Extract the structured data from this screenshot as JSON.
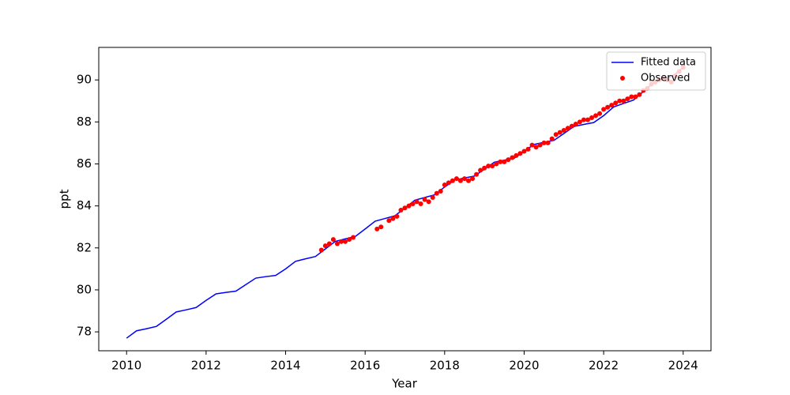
{
  "chart_data": {
    "type": "line",
    "xlabel": "Year",
    "ylabel": "ppt",
    "xlim": [
      2009.3,
      2024.7
    ],
    "ylim": [
      77.1,
      91.55
    ],
    "xticks": [
      2010,
      2012,
      2014,
      2016,
      2018,
      2020,
      2022,
      2024
    ],
    "yticks": [
      78,
      80,
      82,
      84,
      86,
      88,
      90
    ],
    "legend": "upper right",
    "series": [
      {
        "name": "Fitted data",
        "type": "line",
        "color": "#0000ff",
        "x": [
          2010.0,
          2010.25,
          2010.5,
          2010.75,
          2011.0,
          2011.25,
          2011.5,
          2011.75,
          2012.0,
          2012.25,
          2012.5,
          2012.75,
          2013.0,
          2013.25,
          2013.5,
          2013.75,
          2014.0,
          2014.25,
          2014.5,
          2014.75,
          2015.0,
          2015.25,
          2015.5,
          2015.75,
          2016.0,
          2016.25,
          2016.5,
          2016.75,
          2017.0,
          2017.25,
          2017.5,
          2017.75,
          2018.0,
          2018.25,
          2018.5,
          2018.75,
          2019.0,
          2019.25,
          2019.5,
          2019.75,
          2020.0,
          2020.25,
          2020.5,
          2020.75,
          2021.0,
          2021.25,
          2021.5,
          2021.75,
          2022.0,
          2022.25,
          2022.5,
          2022.75,
          2023.0,
          2023.25,
          2023.5,
          2023.75,
          2024.0
        ],
        "values": [
          77.7,
          78.05,
          78.15,
          78.26,
          78.6,
          78.95,
          79.05,
          79.16,
          79.5,
          79.81,
          79.88,
          79.94,
          80.25,
          80.56,
          80.63,
          80.69,
          81.0,
          81.36,
          81.48,
          81.59,
          81.95,
          82.31,
          82.43,
          82.54,
          82.9,
          83.27,
          83.4,
          83.53,
          83.9,
          84.27,
          84.4,
          84.53,
          84.9,
          85.23,
          85.33,
          85.42,
          85.75,
          86.08,
          86.18,
          86.27,
          86.6,
          86.93,
          87.03,
          87.12,
          87.45,
          87.78,
          87.88,
          87.97,
          88.3,
          88.71,
          88.88,
          89.04,
          89.45,
          89.86,
          90.03,
          90.19,
          90.6
        ]
      },
      {
        "name": "Observed",
        "type": "scatter",
        "color": "#ff0000",
        "x": [
          2014.9,
          2015.0,
          2015.1,
          2015.2,
          2015.3,
          2015.4,
          2015.5,
          2015.6,
          2015.7,
          2016.3,
          2016.4,
          2016.6,
          2016.7,
          2016.8,
          2016.9,
          2017.0,
          2017.1,
          2017.2,
          2017.3,
          2017.4,
          2017.5,
          2017.6,
          2017.7,
          2017.8,
          2017.9,
          2018.0,
          2018.1,
          2018.2,
          2018.3,
          2018.4,
          2018.5,
          2018.6,
          2018.7,
          2018.8,
          2018.9,
          2019.0,
          2019.1,
          2019.2,
          2019.3,
          2019.4,
          2019.5,
          2019.6,
          2019.7,
          2019.8,
          2019.9,
          2020.0,
          2020.1,
          2020.2,
          2020.3,
          2020.4,
          2020.5,
          2020.6,
          2020.7,
          2020.8,
          2020.9,
          2021.0,
          2021.1,
          2021.2,
          2021.3,
          2021.4,
          2021.5,
          2021.6,
          2021.7,
          2021.8,
          2021.9,
          2022.0,
          2022.1,
          2022.2,
          2022.3,
          2022.4,
          2022.5,
          2022.6,
          2022.7,
          2022.8,
          2022.9,
          2023.0,
          2023.1,
          2023.2,
          2023.3,
          2023.4,
          2023.5,
          2023.6,
          2023.7,
          2023.8,
          2023.9,
          2024.0
        ],
        "values": [
          81.9,
          82.1,
          82.2,
          82.4,
          82.2,
          82.3,
          82.3,
          82.4,
          82.5,
          82.9,
          83.0,
          83.3,
          83.4,
          83.5,
          83.8,
          83.9,
          84.0,
          84.1,
          84.2,
          84.1,
          84.3,
          84.2,
          84.4,
          84.6,
          84.7,
          85.0,
          85.1,
          85.2,
          85.3,
          85.2,
          85.3,
          85.2,
          85.3,
          85.5,
          85.7,
          85.8,
          85.9,
          85.9,
          86.0,
          86.1,
          86.1,
          86.2,
          86.3,
          86.4,
          86.5,
          86.6,
          86.7,
          86.9,
          86.8,
          86.9,
          87.0,
          87.0,
          87.2,
          87.4,
          87.5,
          87.6,
          87.7,
          87.8,
          87.9,
          88.0,
          88.1,
          88.1,
          88.2,
          88.3,
          88.4,
          88.6,
          88.7,
          88.8,
          88.9,
          89.0,
          89.0,
          89.1,
          89.2,
          89.2,
          89.3,
          89.5,
          89.6,
          89.8,
          89.9,
          90.0,
          90.1,
          90.0,
          89.9,
          90.2,
          90.4,
          90.6
        ]
      }
    ]
  }
}
